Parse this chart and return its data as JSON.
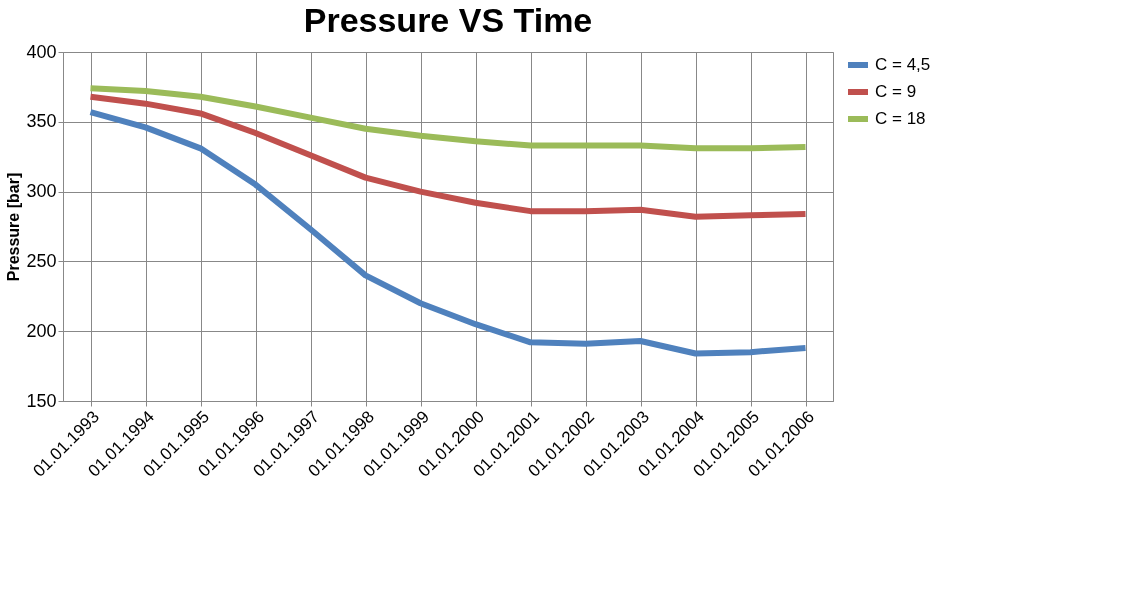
{
  "chart_data": {
    "type": "line",
    "title": "Pressure VS Time",
    "ylabel": "Pressure [bar]",
    "categories": [
      "01.01.1993",
      "01.01.1994",
      "01.01.1995",
      "01.01.1996",
      "01.01.1997",
      "01.01.1998",
      "01.01.1999",
      "01.01.2000",
      "01.01.2001",
      "01.01.2002",
      "01.01.2003",
      "01.01.2004",
      "01.01.2005",
      "01.01.2006"
    ],
    "series": [
      {
        "name": "C = 4,5",
        "color": "#4f81bd",
        "values": [
          357,
          346,
          331,
          305,
          273,
          240,
          220,
          205,
          192,
          191,
          193,
          184,
          185,
          188
        ]
      },
      {
        "name": "C = 9",
        "color": "#c0504d",
        "values": [
          368,
          363,
          356,
          342,
          326,
          310,
          300,
          292,
          286,
          286,
          287,
          282,
          283,
          284
        ]
      },
      {
        "name": "C = 18",
        "color": "#9bbb59",
        "values": [
          374,
          372,
          368,
          361,
          353,
          345,
          340,
          336,
          333,
          333,
          333,
          331,
          331,
          332
        ]
      }
    ],
    "ylim": [
      150,
      400
    ],
    "yticks": [
      150,
      200,
      250,
      300,
      350,
      400
    ],
    "grid": true,
    "legend": "right",
    "marker": "none",
    "line_style": "solid"
  }
}
